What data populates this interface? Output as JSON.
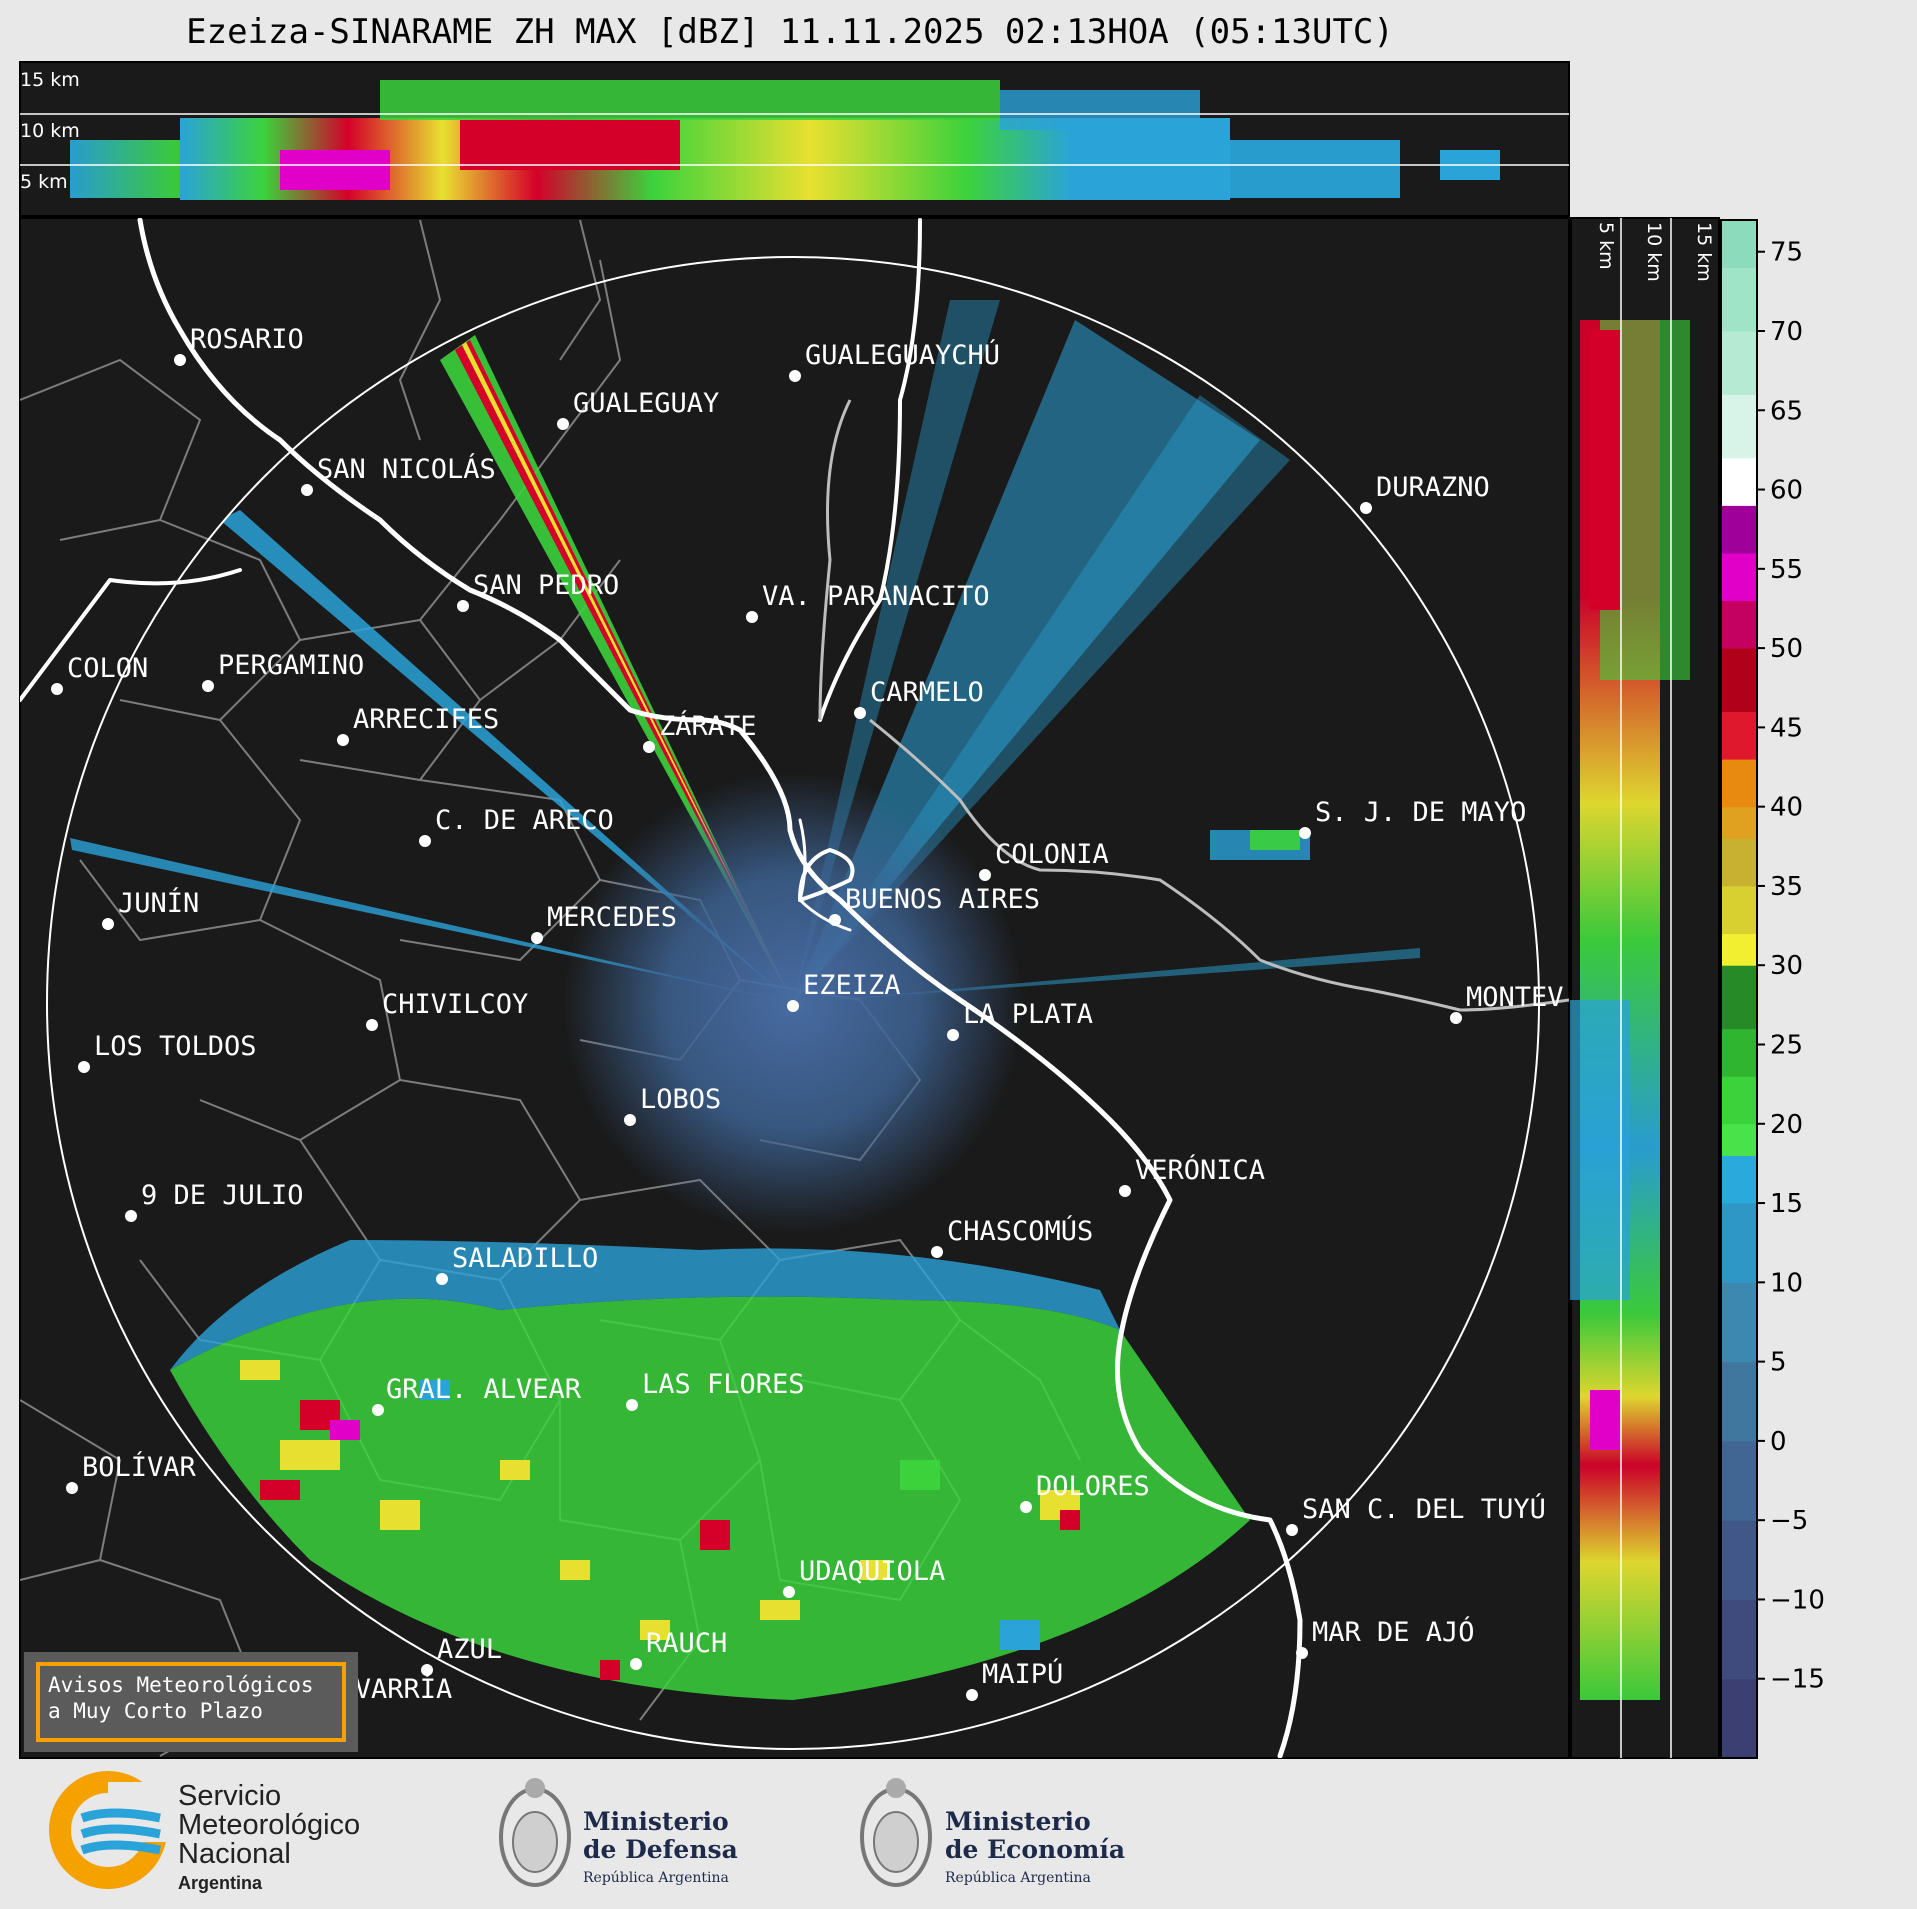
{
  "title": "Ezeiza-SINARAME ZH MAX [dBZ] 11.11.2025 02:13HOA (05:13UTC)",
  "top_panel": {
    "levels": [
      "15 km",
      "10 km",
      "5 km"
    ]
  },
  "side_panel": {
    "levels": [
      "5 km",
      "10 km",
      "15 km"
    ]
  },
  "colorbar": {
    "ticks": [
      "75",
      "70",
      "65",
      "60",
      "55",
      "50",
      "45",
      "40",
      "35",
      "30",
      "25",
      "20",
      "15",
      "10",
      "5",
      "0",
      "−5",
      "−10",
      "−15"
    ],
    "range": [
      -20,
      77
    ]
  },
  "cities": [
    {
      "name": "ROSARIO"
    },
    {
      "name": "GUALEGUAYCHÚ"
    },
    {
      "name": "GUALEGUAY"
    },
    {
      "name": "SAN NICOLÁS"
    },
    {
      "name": "DURAZNO"
    },
    {
      "name": "SAN PEDRO"
    },
    {
      "name": "VA. PARANACITO"
    },
    {
      "name": "COLON"
    },
    {
      "name": "PERGAMINO"
    },
    {
      "name": "CARMELO"
    },
    {
      "name": "ARRECIFES"
    },
    {
      "name": "ZÁRATE"
    },
    {
      "name": "S. J. DE MAYO"
    },
    {
      "name": "C. DE ARECO"
    },
    {
      "name": "COLONIA"
    },
    {
      "name": "JUNÍN"
    },
    {
      "name": "BUENOS AIRES"
    },
    {
      "name": "MERCEDES"
    },
    {
      "name": "EZEIZA"
    },
    {
      "name": "MONTEV"
    },
    {
      "name": "CHIVILCOY"
    },
    {
      "name": "LA PLATA"
    },
    {
      "name": "LOS TOLDOS"
    },
    {
      "name": "LOBOS"
    },
    {
      "name": "VERÓNICA"
    },
    {
      "name": "9 DE JULIO"
    },
    {
      "name": "CHASCOMÚS"
    },
    {
      "name": "SALADILLO"
    },
    {
      "name": "GRAL. ALVEAR"
    },
    {
      "name": "LAS FLORES"
    },
    {
      "name": "BOLÍVAR"
    },
    {
      "name": "DOLORES"
    },
    {
      "name": "SAN C. DEL TUYÚ"
    },
    {
      "name": "UDAQUIOLA"
    },
    {
      "name": "MAR DE AJÓ"
    },
    {
      "name": "AZUL"
    },
    {
      "name": "RAUCH"
    },
    {
      "name": "MAIPÚ"
    },
    {
      "name": "OLAVARRÍA"
    }
  ],
  "notice": {
    "line1": "Avisos Meteorológicos",
    "line2": "a Muy Corto Plazo"
  },
  "logos": {
    "smn": {
      "line1": "Servicio",
      "line2": "Meteorológico",
      "line3": "Nacional",
      "line4": "Argentina"
    },
    "defensa": {
      "line1": "Ministerio",
      "line2": "de Defensa",
      "line3": "República Argentina"
    },
    "economia": {
      "line1": "Ministerio",
      "line2": "de Economía",
      "line3": "República Argentina"
    }
  },
  "colors": {
    "map_bg": "#1a1a1a",
    "light_blue": "#2aa3d8",
    "green": "#3cd23c",
    "yellow": "#e8e030",
    "red": "#d4002a",
    "magenta": "#e000c8",
    "gray_blue": "#3d6a9a"
  }
}
